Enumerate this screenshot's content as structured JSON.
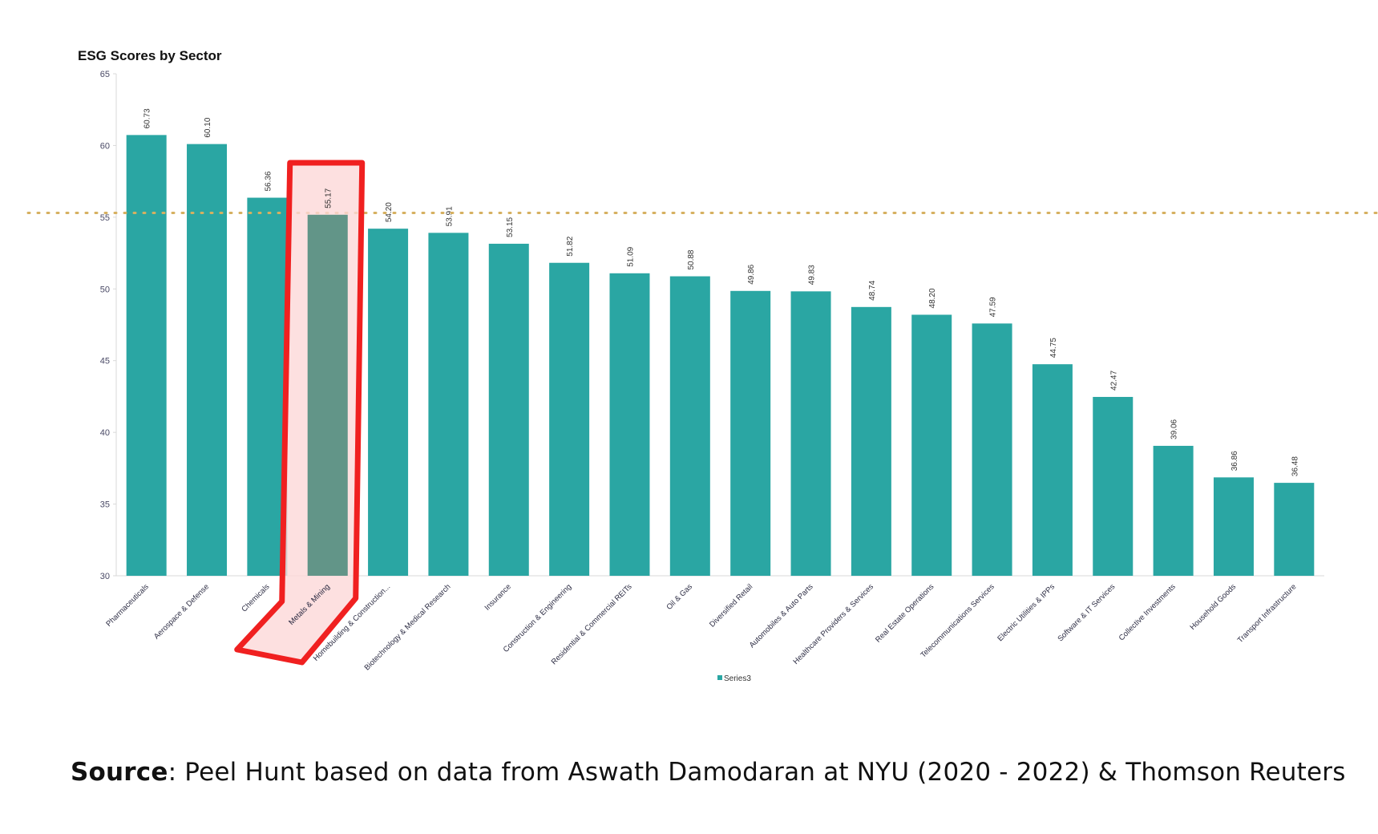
{
  "chart_data": {
    "type": "bar",
    "title": "ESG Scores by Sector",
    "xlabel": "",
    "ylabel": "",
    "ylim": [
      30,
      65
    ],
    "yticks": [
      30,
      35,
      40,
      45,
      50,
      55,
      60,
      65
    ],
    "categories": [
      "Pharmaceuticals",
      "Aerospace & Defense",
      "Chemicals",
      "Metals & Mining",
      "Homebuilding & Construction...",
      "Biotechnology & Medical Research",
      "Insurance",
      "Construction & Engineering",
      "Residential & Commercial REITs",
      "Oil & Gas",
      "Diversified Retail",
      "Automobiles & Auto Parts",
      "Healthcare Providers & Services",
      "Real Estate Operations",
      "Telecommunications Services",
      "Electric Utilities & IPPs",
      "Software & IT Services",
      "Collective Investments",
      "Household Goods",
      "Transport Infrastructure"
    ],
    "series": [
      {
        "name": "Series3",
        "values": [
          60.73,
          60.1,
          56.36,
          55.17,
          54.2,
          53.91,
          53.15,
          51.82,
          51.09,
          50.88,
          49.86,
          49.83,
          48.74,
          48.2,
          47.59,
          44.75,
          42.47,
          39.06,
          36.86,
          36.48
        ]
      }
    ],
    "data_labels": [
      "60.73",
      "60.10",
      "56.36",
      "55.17",
      "54.20",
      "53.91",
      "53.15",
      "51.82",
      "51.09",
      "50.88",
      "49.86",
      "49.83",
      "48.74",
      "48.20",
      "47.59",
      "44.75",
      "42.47",
      "39.06",
      "36.86",
      "36.48"
    ],
    "reference_line": 55.3,
    "highlighted_category": "Metals & Mining",
    "legend": {
      "position": "bottom",
      "label": "Series3"
    },
    "grid": false
  },
  "source": {
    "label": "Source",
    "text": ": Peel Hunt based on data from Aswath Damodaran at NYU (2020 - 2022) & Thomson Reuters"
  },
  "colors": {
    "bar": "#2aa6a3",
    "highlighted_bar": "#5b9185",
    "highlight_outline": "#f02020",
    "highlight_fill": "#fdd8d8",
    "reference_line": "#d6b060"
  }
}
